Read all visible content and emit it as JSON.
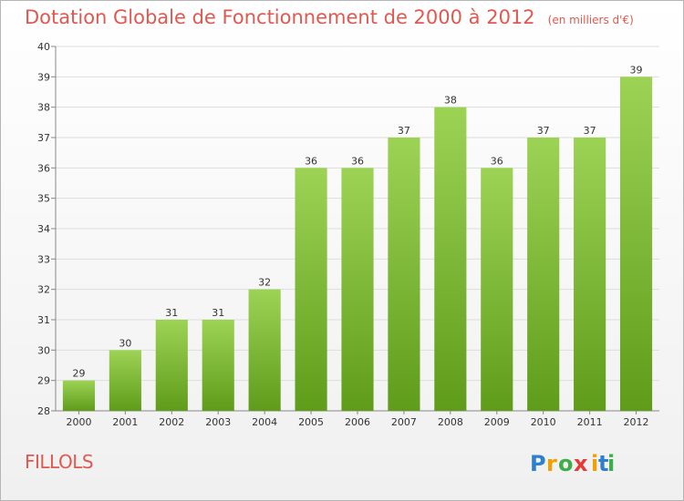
{
  "header": {
    "title": "Dotation Globale de Fonctionnement de 2000 à 2012",
    "units": "(en milliers d'€)"
  },
  "commune": "FILLOLS",
  "brand": {
    "letters": [
      "P",
      "r",
      "o",
      "x",
      "i",
      "t",
      "i"
    ],
    "letter_colors": [
      "#2f7fd0",
      "#f2a000",
      "#3fae49",
      "#e53935",
      "#f2a000",
      "#2f7fd0",
      "#3fae49"
    ]
  },
  "colors": {
    "bar_light": "#9dd355",
    "bar_dark": "#5f9c1a",
    "title": "#e0584f",
    "grid": "#dddddd"
  },
  "chart_data": {
    "type": "bar",
    "title": "Dotation Globale de Fonctionnement de 2000 à 2012",
    "subtitle": "(en milliers d'€)",
    "xlabel": "",
    "ylabel": "",
    "categories": [
      "2000",
      "2001",
      "2002",
      "2003",
      "2004",
      "2005",
      "2006",
      "2007",
      "2008",
      "2009",
      "2010",
      "2011",
      "2012"
    ],
    "values": [
      29,
      30,
      31,
      31,
      32,
      36,
      36,
      37,
      38,
      36,
      37,
      37,
      39
    ],
    "ylim": [
      28,
      40
    ],
    "yticks": [
      28,
      29,
      30,
      31,
      32,
      33,
      34,
      35,
      36,
      37,
      38,
      39,
      40
    ],
    "grid": true,
    "legend": "none"
  }
}
